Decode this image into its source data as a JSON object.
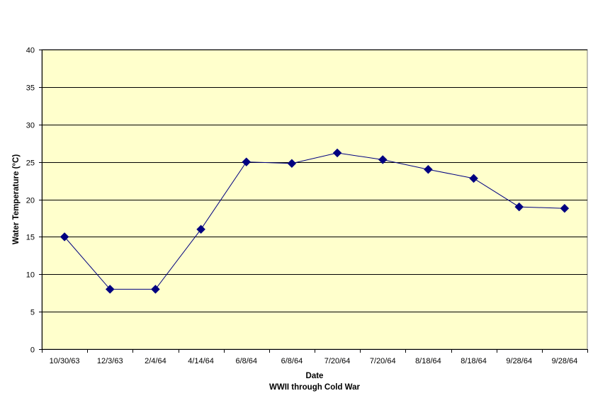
{
  "chart_data": {
    "type": "line",
    "title": "",
    "xlabel": "Date",
    "xlabel_sub": "WWII through Cold War",
    "ylabel": "Water Temperature (°C)",
    "categories": [
      "10/30/63",
      "12/3/63",
      "2/4/64",
      "4/14/64",
      "6/8/64",
      "6/8/64",
      "7/20/64",
      "7/20/64",
      "8/18/64",
      "8/18/64",
      "9/28/64",
      "9/28/64"
    ],
    "series": [
      {
        "values": [
          15,
          8,
          8,
          16,
          25,
          24.8,
          26.2,
          25.3,
          24,
          22.8,
          19,
          18.8
        ]
      }
    ],
    "ylim": [
      0,
      40
    ],
    "yticks": [
      0,
      5,
      10,
      15,
      20,
      25,
      30,
      35,
      40
    ],
    "grid": true,
    "legend": "none",
    "colors": {
      "plot_background": "#ffffcc",
      "line": "#000080",
      "marker": "#000080",
      "grid": "#000000"
    }
  }
}
